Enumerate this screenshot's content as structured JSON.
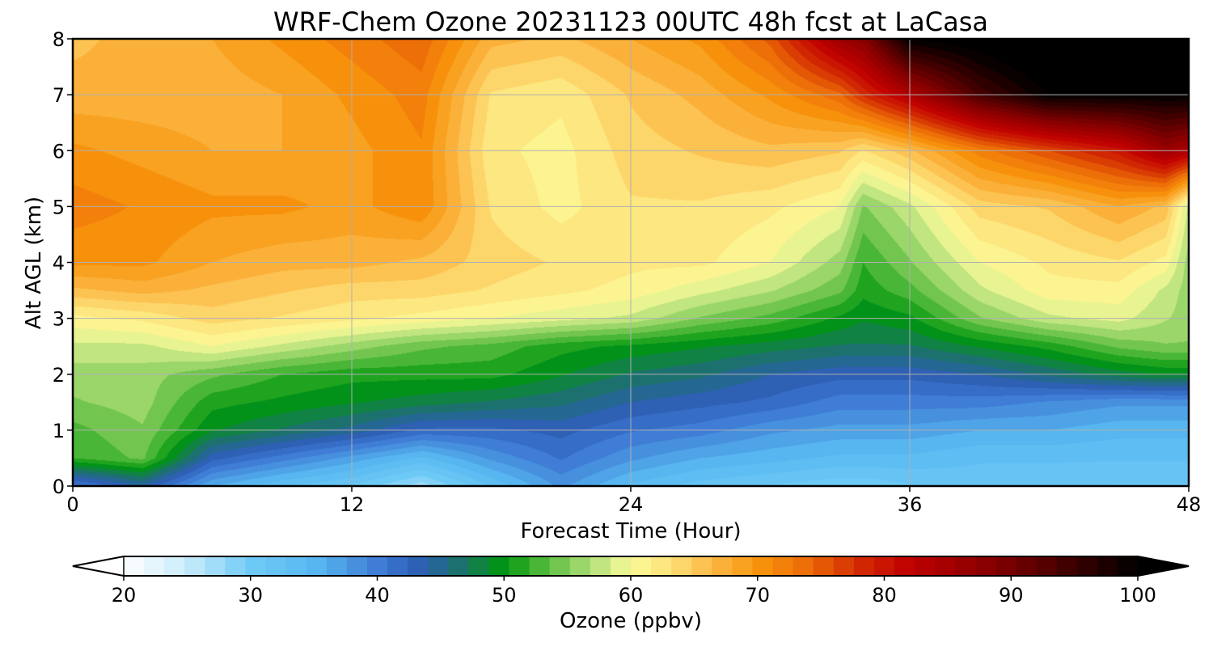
{
  "chart_data": {
    "type": "heatmap",
    "title": "WRF-Chem Ozone  20231123 00UTC 48h fcst at LaCasa",
    "xlabel": "Forecast Time (Hour)",
    "ylabel": "Alt AGL (km)",
    "xlim": [
      0,
      48
    ],
    "ylim": [
      0,
      8
    ],
    "xticks": [
      0,
      12,
      24,
      36,
      48
    ],
    "yticks": [
      0,
      1,
      2,
      3,
      4,
      5,
      6,
      7,
      8
    ],
    "grid": true,
    "x": [
      0,
      3,
      6,
      9,
      12,
      15,
      18,
      21,
      24,
      27,
      30,
      33,
      34,
      36,
      39,
      42,
      45,
      47,
      48
    ],
    "y": [
      0,
      0.5,
      1,
      1.5,
      2,
      2.5,
      3,
      3.5,
      4,
      5,
      6,
      7,
      8
    ],
    "z": [
      [
        40,
        44,
        36,
        33,
        31,
        27,
        33,
        38,
        34,
        32,
        31,
        30,
        30,
        31,
        32,
        32,
        31,
        31,
        31
      ],
      [
        52,
        54,
        43,
        40,
        37,
        34,
        38,
        41,
        38,
        36,
        35,
        34,
        34,
        34,
        33,
        33,
        33,
        33,
        33
      ],
      [
        53,
        55,
        49,
        47,
        45,
        42,
        42,
        43,
        41,
        40,
        38,
        37,
        37,
        37,
        36,
        36,
        35,
        35,
        35
      ],
      [
        55,
        56,
        51,
        50,
        49,
        48,
        47,
        46,
        44,
        43,
        42,
        40,
        40,
        40,
        40,
        39,
        38,
        38,
        38
      ],
      [
        56,
        56,
        54,
        52,
        51,
        51,
        51,
        49,
        47,
        46,
        44,
        43,
        43,
        43,
        44,
        46,
        48,
        49,
        49
      ],
      [
        58,
        58,
        60,
        58,
        56,
        54,
        53,
        51,
        50,
        49,
        48,
        47,
        47,
        47,
        49,
        51,
        54,
        55,
        55
      ],
      [
        61,
        62,
        64,
        63,
        62,
        61,
        60,
        59,
        58,
        55,
        53,
        50,
        49,
        50,
        55,
        58,
        59,
        57,
        56
      ],
      [
        66,
        67,
        66,
        65,
        64,
        64,
        63,
        62,
        61,
        59,
        57,
        54,
        51,
        53,
        58,
        61,
        61,
        58,
        56
      ],
      [
        70,
        70,
        68,
        67,
        67,
        66,
        64,
        63,
        62,
        62,
        60,
        56,
        52,
        55,
        60,
        62,
        63,
        61,
        56
      ],
      [
        72,
        71,
        70,
        70,
        69,
        71,
        63,
        61,
        63,
        63,
        62,
        60,
        55,
        58,
        64,
        65,
        68,
        66,
        58
      ],
      [
        70,
        69,
        68,
        68,
        69,
        71,
        62,
        61,
        64,
        65,
        66,
        65,
        63,
        66,
        72,
        76,
        80,
        86,
        84
      ],
      [
        67,
        67,
        67,
        68,
        70,
        72,
        63,
        62,
        65,
        67,
        70,
        74,
        78,
        84,
        94,
        100,
        100,
        100,
        100
      ],
      [
        66,
        67,
        68,
        70,
        72,
        74,
        67,
        66,
        68,
        70,
        75,
        86,
        88,
        100,
        102,
        105,
        106,
        106,
        106
      ]
    ],
    "colorbar": {
      "label": "Ozone  (ppbv)",
      "min": 20,
      "max": 100,
      "ticks": [
        20,
        30,
        40,
        50,
        60,
        70,
        80,
        90,
        100
      ],
      "extend": "both",
      "color_stops": [
        {
          "v": 20,
          "c": "#ffffff"
        },
        {
          "v": 25,
          "c": "#c8ecfb"
        },
        {
          "v": 30,
          "c": "#6fcaf6"
        },
        {
          "v": 35,
          "c": "#58b8f0"
        },
        {
          "v": 40,
          "c": "#3f7dd6"
        },
        {
          "v": 43,
          "c": "#2f5fb8"
        },
        {
          "v": 46,
          "c": "#1f6d7a"
        },
        {
          "v": 50,
          "c": "#00960e"
        },
        {
          "v": 53,
          "c": "#4fb83a"
        },
        {
          "v": 57,
          "c": "#b3e07a"
        },
        {
          "v": 60,
          "c": "#fbfa9a"
        },
        {
          "v": 63,
          "c": "#fde27a"
        },
        {
          "v": 67,
          "c": "#fbb33c"
        },
        {
          "v": 70,
          "c": "#f8950d"
        },
        {
          "v": 74,
          "c": "#ec6b07"
        },
        {
          "v": 78,
          "c": "#d22a02"
        },
        {
          "v": 82,
          "c": "#c00000"
        },
        {
          "v": 88,
          "c": "#8a0000"
        },
        {
          "v": 94,
          "c": "#460000"
        },
        {
          "v": 100,
          "c": "#000000"
        }
      ]
    }
  }
}
